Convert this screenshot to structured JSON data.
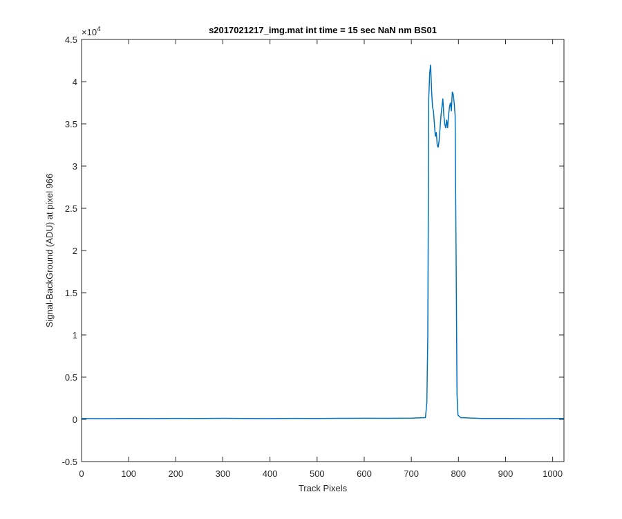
{
  "chart_data": {
    "type": "line",
    "title": "s2017021217_img.mat int time = 15 sec  NaN nm BS01",
    "xlabel": "Track Pixels",
    "ylabel": "Signal-BackGround (ADU) at pixel 966",
    "y_multiplier": {
      "base": "×10",
      "exponent": "4"
    },
    "color": "#0072bd",
    "x": [
      0,
      50,
      100,
      150,
      200,
      250,
      300,
      350,
      400,
      450,
      500,
      550,
      600,
      650,
      700,
      730,
      733,
      735,
      737,
      739,
      741,
      743,
      745,
      747,
      749,
      751,
      753,
      755,
      757,
      759,
      761,
      763,
      765,
      767,
      769,
      771,
      773,
      775,
      777,
      779,
      781,
      783,
      785,
      787,
      789,
      791,
      793,
      795,
      797,
      799,
      805,
      850,
      900,
      950,
      1000,
      1024
    ],
    "values": [
      0.01,
      0.008,
      0.01,
      0.009,
      0.011,
      0.01,
      0.012,
      0.01,
      0.009,
      0.011,
      0.01,
      0.012,
      0.013,
      0.012,
      0.014,
      0.02,
      0.2,
      1.0,
      3.8,
      4.1,
      4.2,
      3.9,
      3.7,
      3.65,
      3.5,
      3.35,
      3.4,
      3.25,
      3.22,
      3.3,
      3.45,
      3.6,
      3.7,
      3.8,
      3.6,
      3.5,
      3.45,
      3.55,
      3.45,
      3.6,
      3.7,
      3.75,
      3.65,
      3.88,
      3.85,
      3.75,
      3.6,
      2.0,
      0.3,
      0.05,
      0.02,
      0.01,
      0.01,
      0.008,
      0.009,
      0.01
    ],
    "xlim": [
      0,
      1024
    ],
    "xticks": [
      0,
      100,
      200,
      300,
      400,
      500,
      600,
      700,
      800,
      900,
      1000
    ],
    "ylim": [
      -0.5,
      4.5
    ],
    "yticks": [
      -0.5,
      0,
      0.5,
      1,
      1.5,
      2,
      2.5,
      3,
      3.5,
      4,
      4.5
    ],
    "grid": false
  }
}
